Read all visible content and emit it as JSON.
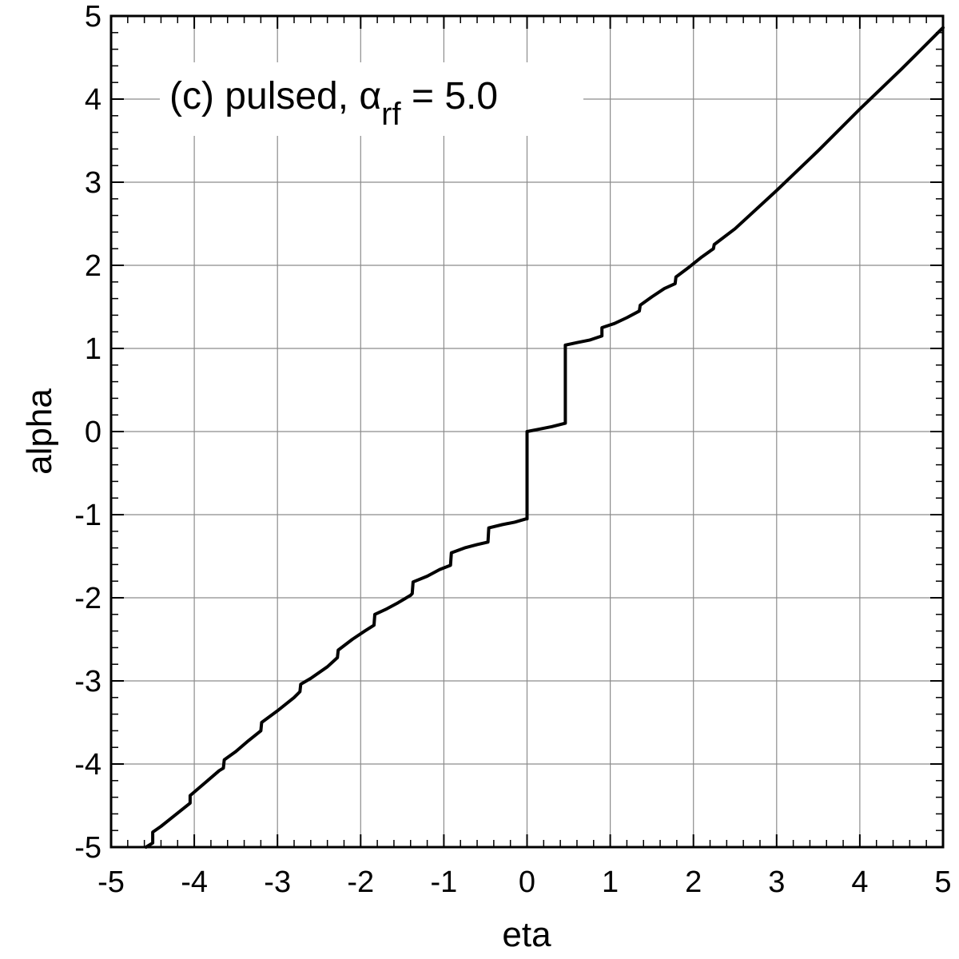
{
  "chart_data": {
    "type": "line",
    "xlabel": "eta",
    "ylabel": "alpha",
    "xlim": [
      -5,
      5
    ],
    "ylim": [
      -5,
      5
    ],
    "xticks": [
      "-5",
      "-4",
      "-3",
      "-2",
      "-1",
      "0",
      "1",
      "2",
      "3",
      "4",
      "5"
    ],
    "yticks": [
      "-5",
      "-4",
      "-3",
      "-2",
      "-1",
      "0",
      "1",
      "2",
      "3",
      "4",
      "5"
    ],
    "grid": true,
    "annotation": {
      "prefix": "(c)  pulsed, ",
      "symbol": "α",
      "subscript": "rf",
      "suffix": " = 5.0"
    },
    "series": [
      {
        "color": "#000000",
        "points": [
          [
            -4.58,
            -5.0
          ],
          [
            -4.5,
            -4.95
          ],
          [
            -4.5,
            -4.82
          ],
          [
            -4.4,
            -4.75
          ],
          [
            -4.3,
            -4.67
          ],
          [
            -4.05,
            -4.47
          ],
          [
            -4.05,
            -4.38
          ],
          [
            -3.7,
            -4.08
          ],
          [
            -3.65,
            -4.05
          ],
          [
            -3.64,
            -3.95
          ],
          [
            -3.5,
            -3.85
          ],
          [
            -3.35,
            -3.72
          ],
          [
            -3.2,
            -3.6
          ],
          [
            -3.19,
            -3.5
          ],
          [
            -3.0,
            -3.36
          ],
          [
            -2.8,
            -3.2
          ],
          [
            -2.73,
            -3.13
          ],
          [
            -2.72,
            -3.04
          ],
          [
            -2.6,
            -2.97
          ],
          [
            -2.4,
            -2.83
          ],
          [
            -2.28,
            -2.72
          ],
          [
            -2.27,
            -2.63
          ],
          [
            -2.1,
            -2.5
          ],
          [
            -1.95,
            -2.4
          ],
          [
            -1.84,
            -2.33
          ],
          [
            -1.83,
            -2.2
          ],
          [
            -1.7,
            -2.14
          ],
          [
            -1.55,
            -2.06
          ],
          [
            -1.4,
            -1.97
          ],
          [
            -1.38,
            -1.95
          ],
          [
            -1.37,
            -1.81
          ],
          [
            -1.2,
            -1.74
          ],
          [
            -1.05,
            -1.66
          ],
          [
            -0.92,
            -1.61
          ],
          [
            -0.91,
            -1.46
          ],
          [
            -0.75,
            -1.4
          ],
          [
            -0.6,
            -1.36
          ],
          [
            -0.47,
            -1.33
          ],
          [
            -0.46,
            -1.16
          ],
          [
            -0.3,
            -1.12
          ],
          [
            -0.15,
            -1.09
          ],
          [
            -0.01,
            -1.05
          ],
          [
            0.0,
            -1.05
          ],
          [
            0.0,
            0.0
          ],
          [
            0.15,
            0.03
          ],
          [
            0.3,
            0.06
          ],
          [
            0.46,
            0.1
          ],
          [
            0.46,
            1.04
          ],
          [
            0.6,
            1.07
          ],
          [
            0.75,
            1.1
          ],
          [
            0.9,
            1.15
          ],
          [
            0.9,
            1.25
          ],
          [
            1.05,
            1.3
          ],
          [
            1.2,
            1.37
          ],
          [
            1.35,
            1.45
          ],
          [
            1.36,
            1.52
          ],
          [
            1.5,
            1.62
          ],
          [
            1.65,
            1.72
          ],
          [
            1.78,
            1.78
          ],
          [
            1.79,
            1.86
          ],
          [
            1.95,
            1.98
          ],
          [
            2.1,
            2.1
          ],
          [
            2.24,
            2.2
          ],
          [
            2.25,
            2.25
          ],
          [
            2.5,
            2.44
          ],
          [
            3.0,
            2.9
          ],
          [
            3.5,
            3.38
          ],
          [
            4.0,
            3.88
          ],
          [
            4.5,
            4.36
          ],
          [
            5.0,
            4.86
          ]
        ]
      }
    ]
  }
}
